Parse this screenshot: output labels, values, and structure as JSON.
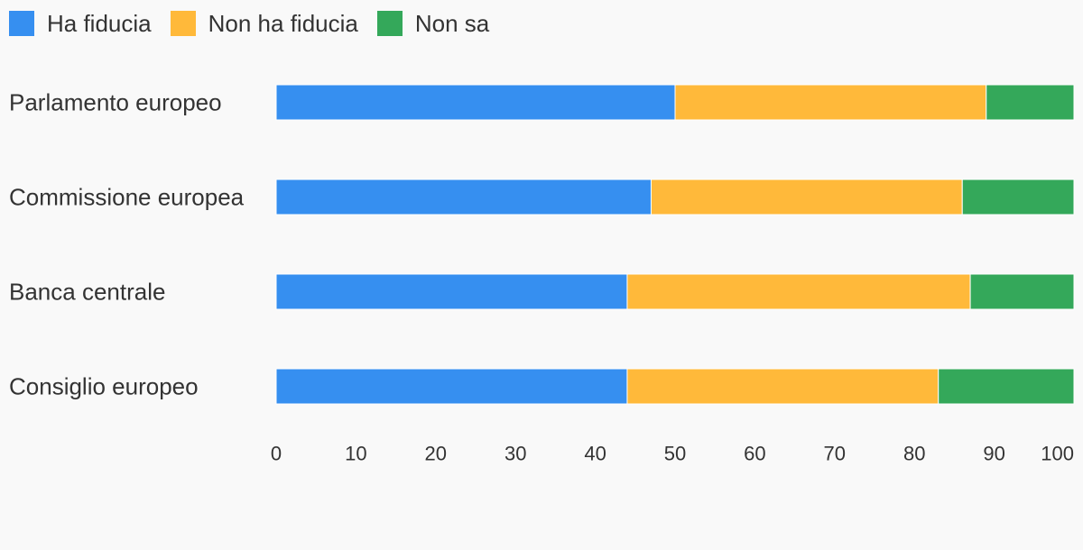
{
  "chart_data": {
    "type": "bar",
    "orientation": "horizontal",
    "stacked": true,
    "categories": [
      "Parlamento europeo",
      "Commissione europea",
      "Banca centrale",
      "Consiglio europeo"
    ],
    "series": [
      {
        "name": "Ha fiducia",
        "color": "#368ff0",
        "values": [
          50,
          47,
          44,
          44
        ]
      },
      {
        "name": "Non ha fiducia",
        "color": "#ffb93a",
        "values": [
          39,
          39,
          43,
          39
        ]
      },
      {
        "name": "Non sa",
        "color": "#34a85a",
        "values": [
          11,
          14,
          13,
          17
        ]
      }
    ],
    "xlim": [
      0,
      100
    ],
    "xticks": [
      0,
      10,
      20,
      30,
      40,
      50,
      60,
      70,
      80,
      90,
      100
    ],
    "grid": false,
    "legend_position": "top-left"
  }
}
